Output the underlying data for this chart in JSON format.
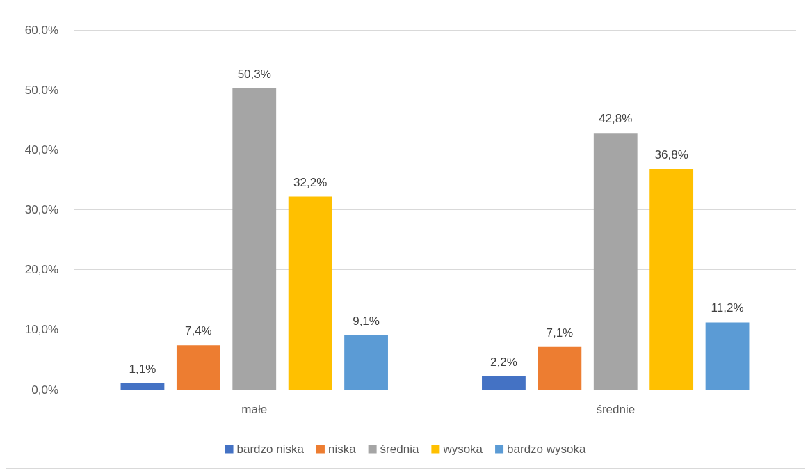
{
  "chart_data": {
    "type": "bar",
    "categories": [
      "małe",
      "średnie"
    ],
    "series": [
      {
        "name": "bardzo niska",
        "color": "#4472c4",
        "values": [
          1.1,
          2.2
        ],
        "value_labels": [
          "1,1%",
          "2,2%"
        ]
      },
      {
        "name": "niska",
        "color": "#ed7d31",
        "values": [
          7.4,
          7.1
        ],
        "value_labels": [
          "7,4%",
          "7,1%"
        ]
      },
      {
        "name": "średnia",
        "color": "#a5a5a5",
        "values": [
          50.3,
          42.8
        ],
        "value_labels": [
          "50,3%",
          "42,8%"
        ]
      },
      {
        "name": "wysoka",
        "color": "#ffc000",
        "values": [
          32.2,
          36.8
        ],
        "value_labels": [
          "32,2%",
          "36,8%"
        ]
      },
      {
        "name": "bardzo wysoka",
        "color": "#5b9bd5",
        "values": [
          9.1,
          11.2
        ],
        "value_labels": [
          "9,1%",
          "11,2%"
        ]
      }
    ],
    "ylim": [
      0,
      60
    ],
    "yticks": [
      {
        "value": 0,
        "label": "0,0%"
      },
      {
        "value": 10,
        "label": "10,0%"
      },
      {
        "value": 20,
        "label": "20,0%"
      },
      {
        "value": 30,
        "label": "30,0%"
      },
      {
        "value": 40,
        "label": "40,0%"
      },
      {
        "value": 50,
        "label": "50,0%"
      },
      {
        "value": 60,
        "label": "60,0%"
      }
    ],
    "grid": "y",
    "legend": "bottom"
  }
}
